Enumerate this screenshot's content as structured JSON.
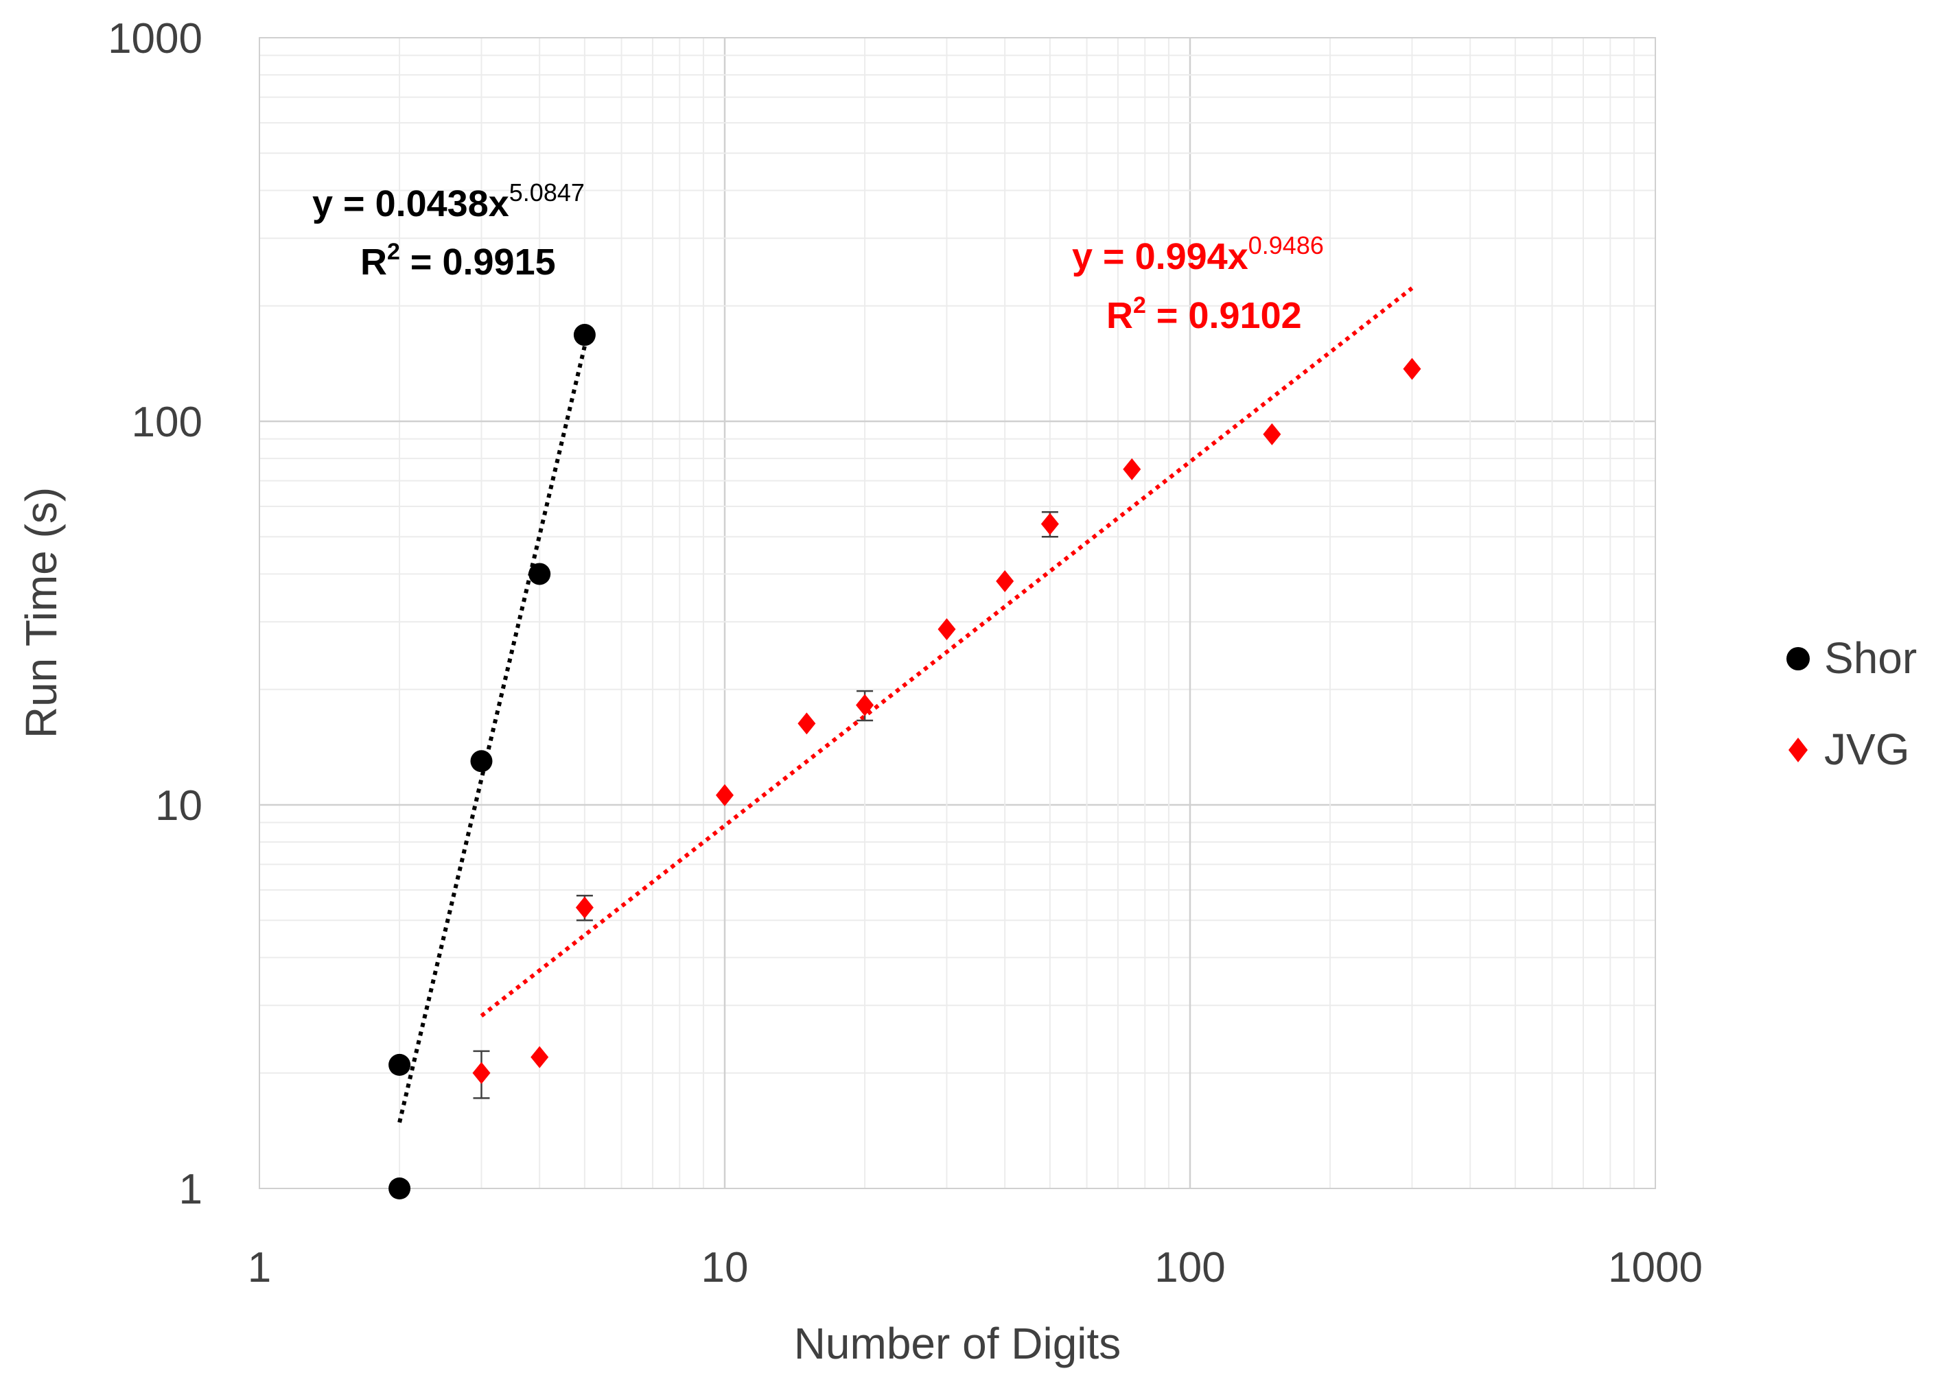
{
  "chart_data": {
    "type": "scatter",
    "title": "",
    "xlabel": "Number of Digits",
    "ylabel": "Run Time (s)",
    "x_scale": "log",
    "y_scale": "log",
    "xlim": [
      1,
      1000
    ],
    "ylim": [
      1,
      1000
    ],
    "x_ticks": [
      "1",
      "10",
      "100",
      "1000"
    ],
    "y_ticks": [
      "1",
      "10",
      "100",
      "1000"
    ],
    "grid": true,
    "legend_position": "right",
    "series": [
      {
        "name": "Shor",
        "color": "#000000",
        "marker": "circle",
        "points": [
          {
            "x": 2,
            "y": 1.0
          },
          {
            "x": 2,
            "y": 2.1
          },
          {
            "x": 3,
            "y": 13
          },
          {
            "x": 4,
            "y": 40
          },
          {
            "x": 5,
            "y": 168
          }
        ],
        "trendline": {
          "type": "power",
          "a": 0.0438,
          "b": 5.0847,
          "x_range": [
            2,
            5
          ],
          "color": "#000000",
          "equation_main": "y = 0.0438x",
          "equation_exp": "5.0847",
          "r2_label": "R",
          "r2_sup": "2",
          "r2_value": " = 0.9915"
        }
      },
      {
        "name": "JVG",
        "color": "#ff0000",
        "marker": "diamond",
        "points": [
          {
            "x": 3,
            "y": 2.0,
            "err": 0.28
          },
          {
            "x": 4,
            "y": 2.2
          },
          {
            "x": 5,
            "y": 5.4,
            "err": 0.4
          },
          {
            "x": 10,
            "y": 10.6
          },
          {
            "x": 15,
            "y": 16.3
          },
          {
            "x": 20,
            "y": 18.2,
            "err": 1.6
          },
          {
            "x": 30,
            "y": 28.7
          },
          {
            "x": 40,
            "y": 38.3
          },
          {
            "x": 50,
            "y": 54,
            "err": 4
          },
          {
            "x": 75,
            "y": 75
          },
          {
            "x": 150,
            "y": 92.5
          },
          {
            "x": 300,
            "y": 137
          }
        ],
        "trendline": {
          "type": "power",
          "a": 0.994,
          "b": 0.9486,
          "x_range": [
            3,
            300
          ],
          "color": "#ff0000",
          "equation_main": "y = 0.994x",
          "equation_exp": "0.9486",
          "r2_label": "R",
          "r2_sup": "2",
          "r2_value": " = 0.9102"
        }
      }
    ]
  }
}
